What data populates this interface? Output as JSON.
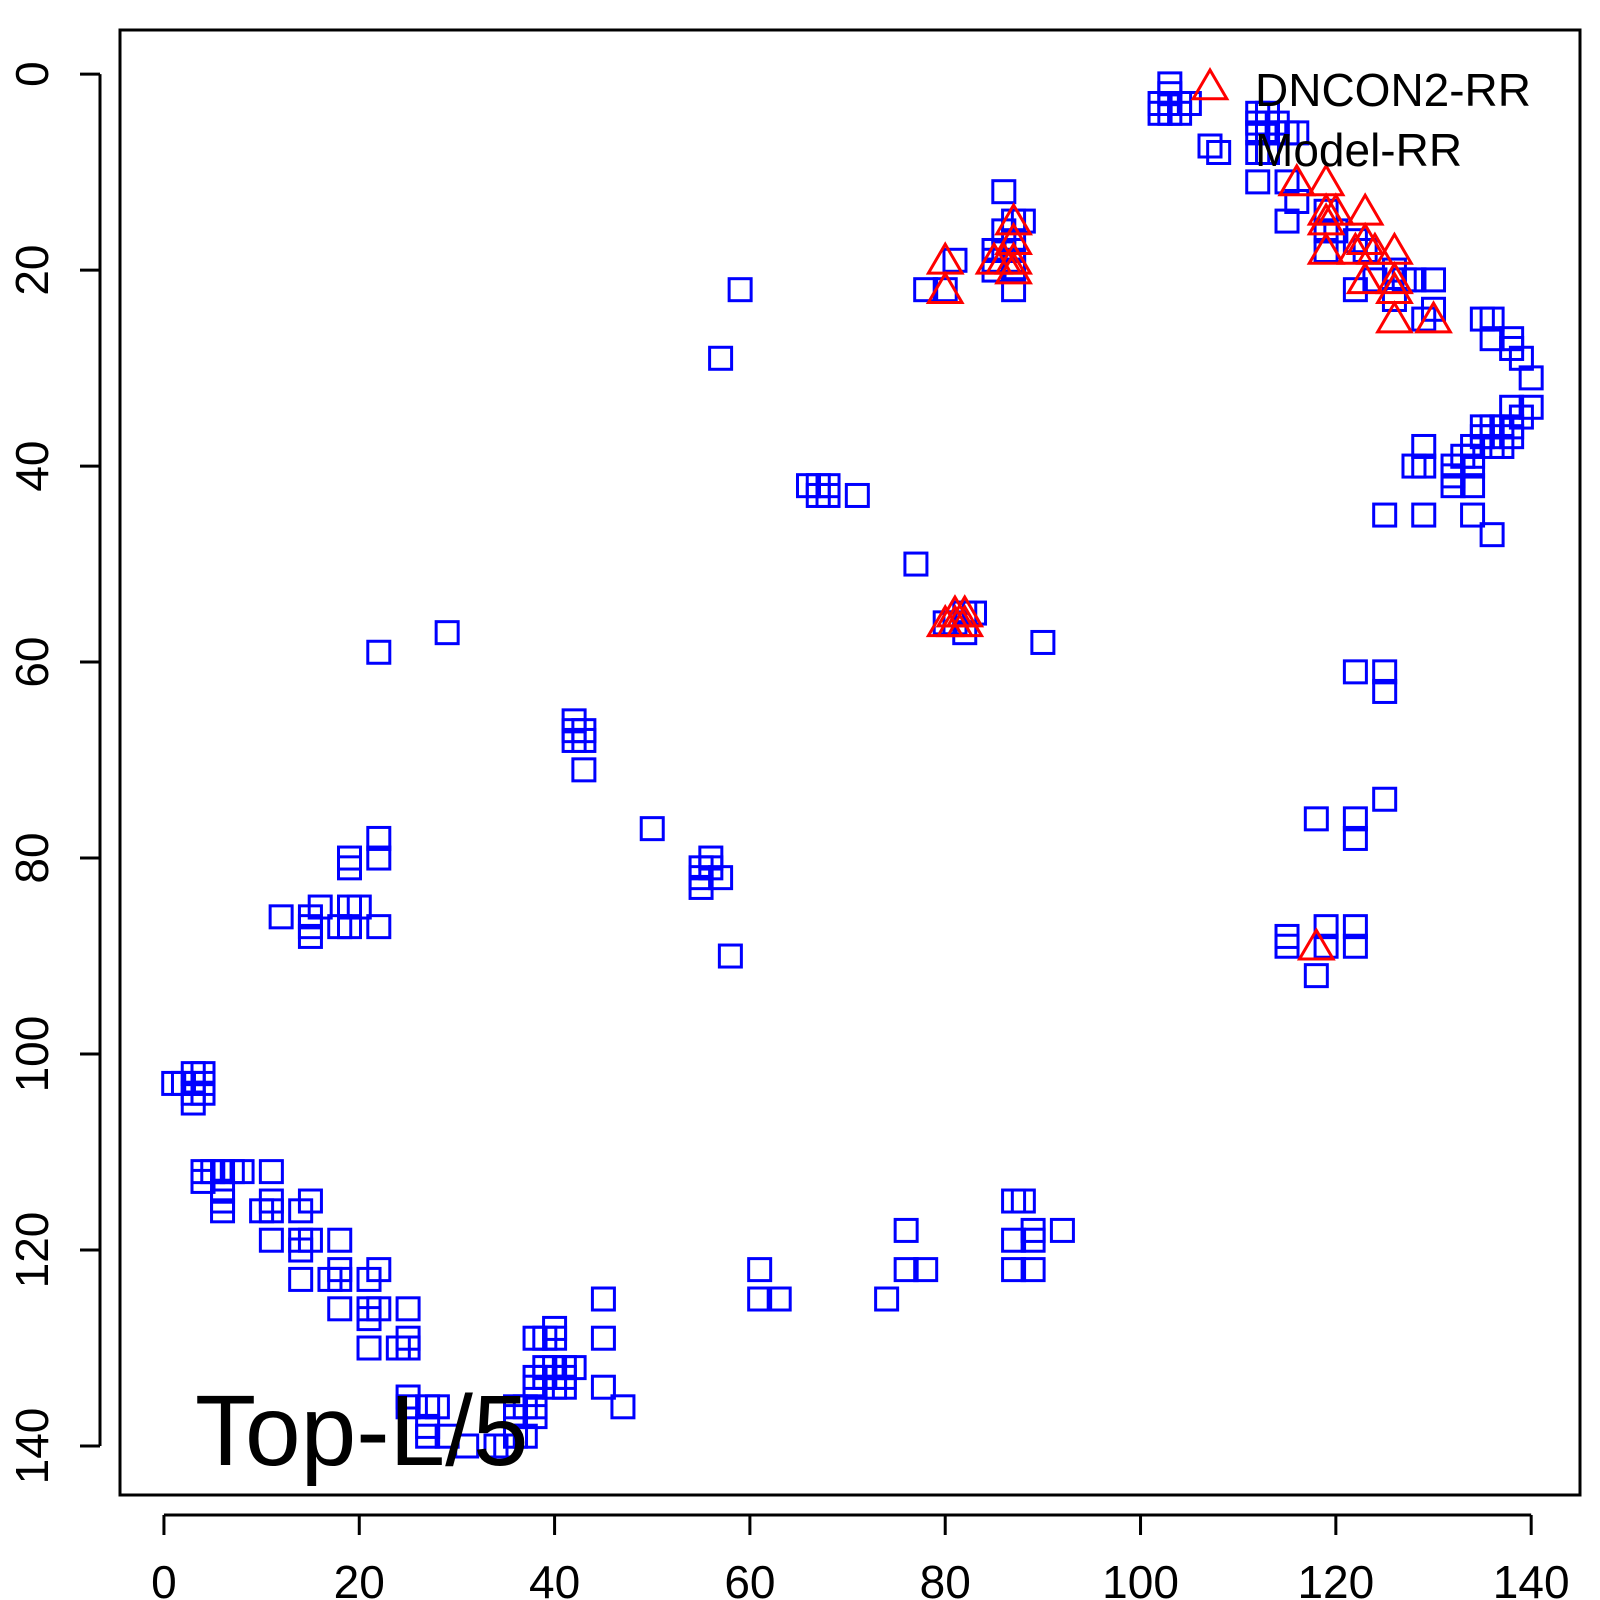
{
  "chart_data": {
    "type": "scatter",
    "title": "",
    "xlabel": "",
    "ylabel": "",
    "xlim": [
      -4.5,
      145
    ],
    "ylim": [
      145,
      -4.5
    ],
    "y_reversed": true,
    "x_ticks": [
      0,
      20,
      40,
      60,
      80,
      100,
      120,
      140
    ],
    "y_ticks": [
      0,
      20,
      40,
      60,
      80,
      100,
      120,
      140
    ],
    "legend_position": "top-right",
    "annotation": "Top-L/5",
    "series": [
      {
        "name": "DNCON2-RR",
        "marker": "triangle",
        "color": "#ff0000",
        "points": [
          [
            80,
            19
          ],
          [
            80,
            22
          ],
          [
            85,
            19
          ],
          [
            86,
            19
          ],
          [
            87,
            15
          ],
          [
            87,
            17
          ],
          [
            87,
            19
          ],
          [
            87,
            20
          ],
          [
            80,
            56
          ],
          [
            81,
            55
          ],
          [
            81,
            56
          ],
          [
            82,
            55
          ],
          [
            82,
            56
          ],
          [
            116,
            11
          ],
          [
            119,
            11
          ],
          [
            119,
            14
          ],
          [
            119,
            15
          ],
          [
            119,
            18
          ],
          [
            120,
            14
          ],
          [
            123,
            14
          ],
          [
            122,
            18
          ],
          [
            123,
            17
          ],
          [
            124,
            18
          ],
          [
            123,
            21
          ],
          [
            126,
            18
          ],
          [
            126,
            21
          ],
          [
            126,
            22
          ],
          [
            126,
            25
          ],
          [
            130,
            25
          ],
          [
            118,
            89
          ]
        ]
      },
      {
        "name": "Model-RR",
        "marker": "square",
        "color": "#0000ff",
        "points": [
          [
            103,
            1
          ],
          [
            103,
            2
          ],
          [
            102,
            3
          ],
          [
            103,
            3
          ],
          [
            104,
            3
          ],
          [
            105,
            3
          ],
          [
            102,
            4
          ],
          [
            103,
            4
          ],
          [
            104,
            4
          ],
          [
            108,
            8
          ],
          [
            112,
            4
          ],
          [
            113,
            4
          ],
          [
            112,
            5
          ],
          [
            113,
            5
          ],
          [
            114,
            5
          ],
          [
            112,
            6
          ],
          [
            113,
            6
          ],
          [
            114,
            6
          ],
          [
            115,
            6
          ],
          [
            116,
            6
          ],
          [
            112,
            8
          ],
          [
            113,
            8
          ],
          [
            112,
            11
          ],
          [
            115,
            11
          ],
          [
            116,
            13
          ],
          [
            115,
            15
          ],
          [
            86,
            12
          ],
          [
            87,
            15
          ],
          [
            86,
            16
          ],
          [
            88,
            15
          ],
          [
            87,
            17
          ],
          [
            85,
            18
          ],
          [
            86,
            18
          ],
          [
            87,
            18
          ],
          [
            85,
            19
          ],
          [
            87,
            19
          ],
          [
            85,
            20
          ],
          [
            87,
            20
          ],
          [
            87,
            22
          ],
          [
            78,
            22
          ],
          [
            81,
            19
          ],
          [
            80,
            22
          ],
          [
            59,
            22
          ],
          [
            57,
            29
          ],
          [
            119,
            14
          ],
          [
            119,
            16
          ],
          [
            119,
            18
          ],
          [
            120,
            16
          ],
          [
            122,
            17
          ],
          [
            123,
            18
          ],
          [
            122,
            22
          ],
          [
            124,
            21
          ],
          [
            126,
            20
          ],
          [
            127,
            21
          ],
          [
            128,
            21
          ],
          [
            130,
            21
          ],
          [
            126,
            23
          ],
          [
            129,
            25
          ],
          [
            130,
            24
          ],
          [
            135,
            25
          ],
          [
            136,
            25
          ],
          [
            136,
            27
          ],
          [
            138,
            27
          ],
          [
            138,
            28
          ],
          [
            139,
            29
          ],
          [
            140,
            31
          ],
          [
            140,
            34
          ],
          [
            138,
            34
          ],
          [
            139,
            35
          ],
          [
            135,
            36
          ],
          [
            136,
            36
          ],
          [
            137,
            36
          ],
          [
            135,
            37
          ],
          [
            136,
            37
          ],
          [
            138,
            37
          ],
          [
            138,
            36
          ],
          [
            134,
            38
          ],
          [
            136,
            38
          ],
          [
            137,
            38
          ],
          [
            134,
            39
          ],
          [
            133,
            39
          ],
          [
            132,
            40
          ],
          [
            132,
            41
          ],
          [
            134,
            42
          ],
          [
            132,
            42
          ],
          [
            128,
            40
          ],
          [
            129,
            40
          ],
          [
            129,
            38
          ],
          [
            134,
            40
          ],
          [
            125,
            45
          ],
          [
            129,
            45
          ],
          [
            134,
            45
          ],
          [
            136,
            47
          ],
          [
            66,
            42
          ],
          [
            67,
            42
          ],
          [
            68,
            42
          ],
          [
            67,
            43
          ],
          [
            68,
            43
          ],
          [
            71,
            43
          ],
          [
            77,
            50
          ],
          [
            80,
            56
          ],
          [
            81,
            56
          ],
          [
            82,
            55
          ],
          [
            83,
            55
          ],
          [
            82,
            57
          ],
          [
            90,
            58
          ],
          [
            122,
            61
          ],
          [
            125,
            61
          ],
          [
            125,
            63
          ],
          [
            125,
            74
          ],
          [
            118,
            76
          ],
          [
            122,
            76
          ],
          [
            122,
            78
          ],
          [
            115,
            88
          ],
          [
            115,
            89
          ],
          [
            119,
            87
          ],
          [
            119,
            89
          ],
          [
            122,
            87
          ],
          [
            122,
            89
          ],
          [
            118,
            92
          ],
          [
            29,
            57
          ],
          [
            22,
            59
          ],
          [
            42,
            66
          ],
          [
            42,
            67
          ],
          [
            43,
            67
          ],
          [
            42,
            68
          ],
          [
            43,
            68
          ],
          [
            43,
            71
          ],
          [
            50,
            77
          ],
          [
            56,
            80
          ],
          [
            55,
            81
          ],
          [
            56,
            81
          ],
          [
            55,
            82
          ],
          [
            57,
            82
          ],
          [
            55,
            83
          ],
          [
            58,
            90
          ],
          [
            22,
            78
          ],
          [
            22,
            80
          ],
          [
            19,
            80
          ],
          [
            19,
            81
          ],
          [
            12,
            86
          ],
          [
            15,
            86
          ],
          [
            16,
            85
          ],
          [
            19,
            85
          ],
          [
            20,
            85
          ],
          [
            15,
            87
          ],
          [
            18,
            87
          ],
          [
            19,
            87
          ],
          [
            22,
            87
          ],
          [
            15,
            88
          ],
          [
            1,
            103
          ],
          [
            2,
            103
          ],
          [
            3,
            103
          ],
          [
            4,
            103
          ],
          [
            3,
            102
          ],
          [
            4,
            102
          ],
          [
            3,
            104
          ],
          [
            4,
            104
          ],
          [
            3,
            105
          ],
          [
            4,
            112
          ],
          [
            5,
            112
          ],
          [
            6,
            112
          ],
          [
            7,
            112
          ],
          [
            8,
            112
          ],
          [
            11,
            112
          ],
          [
            4,
            113
          ],
          [
            6,
            114
          ],
          [
            6,
            115
          ],
          [
            6,
            116
          ],
          [
            10,
            116
          ],
          [
            11,
            116
          ],
          [
            11,
            115
          ],
          [
            14,
            116
          ],
          [
            15,
            115
          ],
          [
            11,
            119
          ],
          [
            14,
            119
          ],
          [
            15,
            119
          ],
          [
            18,
            119
          ],
          [
            14,
            120
          ],
          [
            14,
            123
          ],
          [
            17,
            123
          ],
          [
            18,
            123
          ],
          [
            22,
            122
          ],
          [
            18,
            122
          ],
          [
            21,
            123
          ],
          [
            18,
            126
          ],
          [
            21,
            126
          ],
          [
            22,
            126
          ],
          [
            21,
            127
          ],
          [
            25,
            126
          ],
          [
            21,
            130
          ],
          [
            24,
            130
          ],
          [
            25,
            130
          ],
          [
            25,
            129
          ],
          [
            25,
            135
          ],
          [
            25,
            136
          ],
          [
            27,
            136
          ],
          [
            28,
            136
          ],
          [
            27,
            138
          ],
          [
            27,
            139
          ],
          [
            29,
            139
          ],
          [
            31,
            140
          ],
          [
            34,
            140
          ],
          [
            35,
            140
          ],
          [
            36,
            139
          ],
          [
            37,
            139
          ],
          [
            36,
            137
          ],
          [
            36,
            136
          ],
          [
            37,
            136
          ],
          [
            38,
            136
          ],
          [
            38,
            137
          ],
          [
            38,
            134
          ],
          [
            38,
            133
          ],
          [
            39,
            133
          ],
          [
            39,
            132
          ],
          [
            40,
            132
          ],
          [
            41,
            132
          ],
          [
            42,
            132
          ],
          [
            40,
            133
          ],
          [
            41,
            133
          ],
          [
            40,
            134
          ],
          [
            41,
            134
          ],
          [
            38,
            129
          ],
          [
            39,
            129
          ],
          [
            40,
            129
          ],
          [
            40,
            128
          ],
          [
            45,
            125
          ],
          [
            45,
            129
          ],
          [
            45,
            134
          ],
          [
            47,
            136
          ],
          [
            61,
            122
          ],
          [
            61,
            125
          ],
          [
            63,
            125
          ],
          [
            74,
            125
          ],
          [
            76,
            118
          ],
          [
            76,
            122
          ],
          [
            78,
            122
          ],
          [
            87,
            115
          ],
          [
            88,
            115
          ],
          [
            87,
            119
          ],
          [
            89,
            118
          ],
          [
            89,
            119
          ],
          [
            92,
            118
          ],
          [
            87,
            122
          ],
          [
            89,
            122
          ]
        ]
      }
    ]
  }
}
